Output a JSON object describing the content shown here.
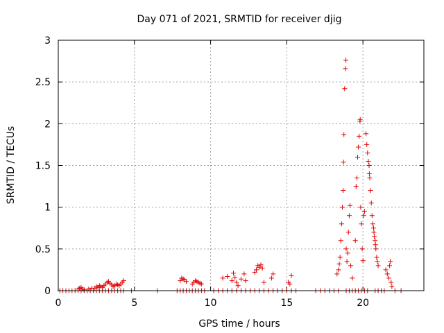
{
  "chart_data": {
    "type": "scatter",
    "title": "Day 071 of 2021, SRMTID for receiver djig",
    "xlabel": "GPS time / hours",
    "ylabel": "SRMTID / TECUs",
    "xlim": [
      0,
      24
    ],
    "ylim": [
      0,
      3
    ],
    "xticks": [
      0,
      5,
      10,
      15,
      20
    ],
    "xtick_labels": [
      "0",
      "5",
      "10",
      "15",
      "20"
    ],
    "yticks": [
      0,
      0.5,
      1,
      1.5,
      2,
      2.5,
      3
    ],
    "ytick_labels": [
      "0",
      "0.5",
      "1",
      "1.5",
      "2",
      "2.5",
      "3"
    ],
    "grid": true,
    "marker": "+",
    "series": [
      {
        "name": "SRMTID",
        "color": "#e00000",
        "points": [
          [
            0.1,
            0
          ],
          [
            0.3,
            0
          ],
          [
            0.5,
            0
          ],
          [
            0.7,
            0
          ],
          [
            0.9,
            0
          ],
          [
            1.1,
            0
          ],
          [
            1.3,
            0
          ],
          [
            1.5,
            0
          ],
          [
            1.7,
            0
          ],
          [
            1.9,
            0
          ],
          [
            2.1,
            0
          ],
          [
            2.3,
            0
          ],
          [
            2.5,
            0
          ],
          [
            2.7,
            0
          ],
          [
            2.9,
            0
          ],
          [
            3.1,
            0
          ],
          [
            3.3,
            0
          ],
          [
            3.5,
            0
          ],
          [
            3.7,
            0
          ],
          [
            3.9,
            0
          ],
          [
            4.1,
            0
          ],
          [
            4.3,
            0
          ],
          [
            4.8,
            0
          ],
          [
            6.5,
            0
          ],
          [
            7.8,
            0
          ],
          [
            8.0,
            0
          ],
          [
            8.2,
            0
          ],
          [
            8.4,
            0
          ],
          [
            8.6,
            0
          ],
          [
            8.8,
            0
          ],
          [
            9.0,
            0
          ],
          [
            9.2,
            0
          ],
          [
            9.4,
            0
          ],
          [
            9.6,
            0
          ],
          [
            10.2,
            0
          ],
          [
            10.5,
            0
          ],
          [
            10.8,
            0
          ],
          [
            11.1,
            0
          ],
          [
            11.4,
            0
          ],
          [
            11.7,
            0
          ],
          [
            12.0,
            0
          ],
          [
            12.3,
            0
          ],
          [
            12.6,
            0
          ],
          [
            12.9,
            0
          ],
          [
            13.2,
            0
          ],
          [
            13.5,
            0
          ],
          [
            13.8,
            0
          ],
          [
            14.1,
            0
          ],
          [
            14.4,
            0
          ],
          [
            14.7,
            0
          ],
          [
            15.0,
            0
          ],
          [
            15.3,
            0
          ],
          [
            15.6,
            0
          ],
          [
            16.9,
            0
          ],
          [
            17.2,
            0
          ],
          [
            17.5,
            0
          ],
          [
            17.8,
            0
          ],
          [
            18.1,
            0
          ],
          [
            18.4,
            0
          ],
          [
            18.9,
            0
          ],
          [
            19.1,
            0
          ],
          [
            19.3,
            0
          ],
          [
            19.5,
            0
          ],
          [
            19.7,
            0
          ],
          [
            19.9,
            0
          ],
          [
            20.1,
            0
          ],
          [
            20.3,
            0
          ],
          [
            20.8,
            0
          ],
          [
            21.0,
            0
          ],
          [
            21.2,
            0
          ],
          [
            21.4,
            0
          ],
          [
            22.1,
            0
          ],
          [
            22.5,
            0
          ],
          [
            1.3,
            0.02
          ],
          [
            1.4,
            0.03
          ],
          [
            1.5,
            0.04
          ],
          [
            1.6,
            0.02
          ],
          [
            1.7,
            0.01
          ],
          [
            2.0,
            0.02
          ],
          [
            2.2,
            0.03
          ],
          [
            2.4,
            0.03
          ],
          [
            2.5,
            0.05
          ],
          [
            2.6,
            0.04
          ],
          [
            2.7,
            0.06
          ],
          [
            2.8,
            0.05
          ],
          [
            2.9,
            0.04
          ],
          [
            3.0,
            0.06
          ],
          [
            3.1,
            0.08
          ],
          [
            3.2,
            0.1
          ],
          [
            3.3,
            0.11
          ],
          [
            3.4,
            0.09
          ],
          [
            3.5,
            0.07
          ],
          [
            3.6,
            0.05
          ],
          [
            3.7,
            0.06
          ],
          [
            3.8,
            0.08
          ],
          [
            3.9,
            0.07
          ],
          [
            4.0,
            0.06
          ],
          [
            4.1,
            0.08
          ],
          [
            4.2,
            0.1
          ],
          [
            4.3,
            0.12
          ],
          [
            8.0,
            0.12
          ],
          [
            8.1,
            0.15
          ],
          [
            8.2,
            0.14
          ],
          [
            8.3,
            0.13
          ],
          [
            8.4,
            0.11
          ],
          [
            8.8,
            0.08
          ],
          [
            8.9,
            0.1
          ],
          [
            9.0,
            0.12
          ],
          [
            9.1,
            0.11
          ],
          [
            9.2,
            0.1
          ],
          [
            9.3,
            0.09
          ],
          [
            9.4,
            0.08
          ],
          [
            10.8,
            0.15
          ],
          [
            11.1,
            0.17
          ],
          [
            11.4,
            0.12
          ],
          [
            11.5,
            0.21
          ],
          [
            11.6,
            0.16
          ],
          [
            11.7,
            0.1
          ],
          [
            11.8,
            0.06
          ],
          [
            12.0,
            0.14
          ],
          [
            12.2,
            0.2
          ],
          [
            12.3,
            0.12
          ],
          [
            12.9,
            0.22
          ],
          [
            13.0,
            0.25
          ],
          [
            13.1,
            0.3
          ],
          [
            13.2,
            0.28
          ],
          [
            13.3,
            0.31
          ],
          [
            13.4,
            0.27
          ],
          [
            13.5,
            0.1
          ],
          [
            14.0,
            0.15
          ],
          [
            14.1,
            0.2
          ],
          [
            15.1,
            0.1
          ],
          [
            15.2,
            0.08
          ],
          [
            15.3,
            0.18
          ],
          [
            18.3,
            0.2
          ],
          [
            18.4,
            0.25
          ],
          [
            18.45,
            0.32
          ],
          [
            18.5,
            0.4
          ],
          [
            18.55,
            0.6
          ],
          [
            18.6,
            0.8
          ],
          [
            18.65,
            1.0
          ],
          [
            18.7,
            1.2
          ],
          [
            18.72,
            1.54
          ],
          [
            18.75,
            1.87
          ],
          [
            18.8,
            2.42
          ],
          [
            18.85,
            2.66
          ],
          [
            18.88,
            2.76
          ],
          [
            18.9,
            0.5
          ],
          [
            18.95,
            0.35
          ],
          [
            19.0,
            0.45
          ],
          [
            19.05,
            0.7
          ],
          [
            19.1,
            0.9
          ],
          [
            19.15,
            1.02
          ],
          [
            19.2,
            0.3
          ],
          [
            19.3,
            0.15
          ],
          [
            19.5,
            0.6
          ],
          [
            19.55,
            1.25
          ],
          [
            19.6,
            1.35
          ],
          [
            19.65,
            1.6
          ],
          [
            19.7,
            1.72
          ],
          [
            19.75,
            1.85
          ],
          [
            19.8,
            2.03
          ],
          [
            19.82,
            2.05
          ],
          [
            19.85,
            1.0
          ],
          [
            19.9,
            0.8
          ],
          [
            19.95,
            0.5
          ],
          [
            20.0,
            0.36
          ],
          [
            20.05,
            0.9
          ],
          [
            20.1,
            0.95
          ],
          [
            20.2,
            1.88
          ],
          [
            20.25,
            1.75
          ],
          [
            20.3,
            1.65
          ],
          [
            20.35,
            1.55
          ],
          [
            20.4,
            1.5
          ],
          [
            20.42,
            1.4
          ],
          [
            20.45,
            1.35
          ],
          [
            20.5,
            1.2
          ],
          [
            20.55,
            1.05
          ],
          [
            20.6,
            0.9
          ],
          [
            20.65,
            0.8
          ],
          [
            20.7,
            0.75
          ],
          [
            20.72,
            0.7
          ],
          [
            20.75,
            0.65
          ],
          [
            20.8,
            0.6
          ],
          [
            20.82,
            0.55
          ],
          [
            20.85,
            0.5
          ],
          [
            20.9,
            0.4
          ],
          [
            20.95,
            0.35
          ],
          [
            21.0,
            0.3
          ],
          [
            21.5,
            0.25
          ],
          [
            21.6,
            0.2
          ],
          [
            21.7,
            0.15
          ],
          [
            21.75,
            0.3
          ],
          [
            21.8,
            0.35
          ],
          [
            21.85,
            0.1
          ],
          [
            21.9,
            0.05
          ]
        ]
      }
    ]
  }
}
